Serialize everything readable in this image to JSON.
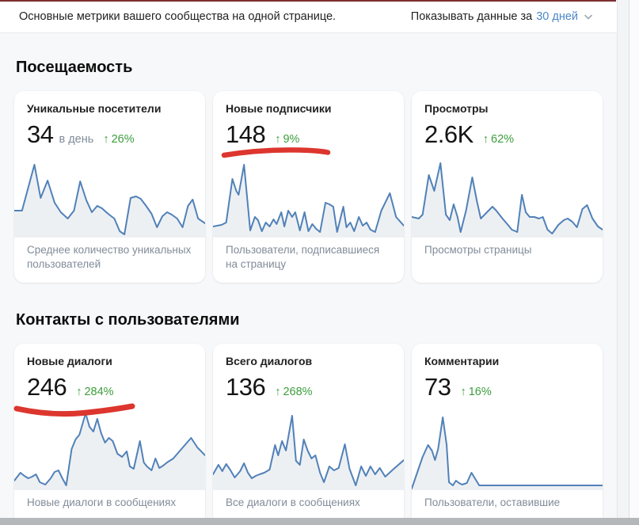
{
  "theme": {
    "chart_line": "#5181b8",
    "chart_fill": "#edf0f3",
    "growth_green": "#3c9e3c",
    "link_blue": "#4a86c8",
    "annotation_red": "#dc362e",
    "top_edge_red": "#7e2f2f",
    "text_primary": "#222222",
    "text_secondary": "#818c99",
    "page_bg": "#f7f8fa",
    "card_bg": "#ffffff",
    "scrollbar_gray": "#b5b8ba"
  },
  "header": {
    "subtitle": "Основные метрики вашего сообщества на одной странице.",
    "period_label": "Показывать данные за",
    "period_value": "30 дней"
  },
  "icons": {
    "growth_arrow": "↑"
  },
  "sections": [
    {
      "title": "Посещаемость",
      "cards": [
        {
          "title": "Уникальные посетители",
          "value": "34",
          "unit": "в день",
          "growth": "26%",
          "caption": "Среднее количество уникальных пользователей"
        },
        {
          "title": "Новые подписчики",
          "value": "148",
          "growth": "9%",
          "caption": "Пользователи, подписавшиеся на страницу",
          "annotation": "red-marker-underline"
        },
        {
          "title": "Просмотры",
          "value": "2.6K",
          "growth": "62%",
          "caption": "Просмотры страницы"
        }
      ]
    },
    {
      "title": "Контакты с пользователями",
      "cards": [
        {
          "title": "Новые диалоги",
          "value": "246",
          "growth": "284%",
          "caption": "Новые диалоги в сообщениях",
          "annotation": "red-marker-underline"
        },
        {
          "title": "Всего диалогов",
          "value": "136",
          "growth": "268%",
          "caption": "Все диалоги в сообщениях"
        },
        {
          "title": "Комментарии",
          "value": "73",
          "growth": "16%",
          "caption": "Пользователи, оставившие"
        }
      ]
    }
  ],
  "chart_data": [
    {
      "type": "line",
      "title": "Уникальные посетители",
      "summary_value": 34,
      "growth_pct": 26,
      "x_axis": "последние 30 дней (подписи осей скрыты)",
      "y_scale": "относительные значения 0–100",
      "points": [
        [
          0,
          32
        ],
        [
          10,
          32
        ],
        [
          26,
          90
        ],
        [
          34,
          48
        ],
        [
          43,
          70
        ],
        [
          52,
          42
        ],
        [
          60,
          30
        ],
        [
          69,
          22
        ],
        [
          77,
          32
        ],
        [
          85,
          69
        ],
        [
          93,
          45
        ],
        [
          100,
          30
        ],
        [
          107,
          38
        ],
        [
          113,
          35
        ],
        [
          121,
          28
        ],
        [
          129,
          22
        ],
        [
          136,
          6
        ],
        [
          142,
          2
        ],
        [
          150,
          48
        ],
        [
          157,
          50
        ],
        [
          163,
          47
        ],
        [
          170,
          38
        ],
        [
          177,
          28
        ],
        [
          184,
          11
        ],
        [
          191,
          25
        ],
        [
          197,
          30
        ],
        [
          203,
          27
        ],
        [
          210,
          22
        ],
        [
          217,
          11
        ],
        [
          224,
          38
        ],
        [
          230,
          46
        ],
        [
          237,
          22
        ],
        [
          246,
          16
        ]
      ]
    },
    {
      "type": "line",
      "title": "Новые подписчики",
      "summary_value": 148,
      "growth_pct": 9,
      "x_axis": "последние 30 дней (подписи осей скрыты)",
      "y_scale": "относительные значения 0–100",
      "points": [
        [
          0,
          12
        ],
        [
          11,
          14
        ],
        [
          17,
          17
        ],
        [
          25,
          72
        ],
        [
          30,
          57
        ],
        [
          33,
          52
        ],
        [
          40,
          90
        ],
        [
          48,
          7
        ],
        [
          54,
          24
        ],
        [
          58,
          20
        ],
        [
          63,
          6
        ],
        [
          68,
          17
        ],
        [
          73,
          12
        ],
        [
          78,
          21
        ],
        [
          82,
          15
        ],
        [
          88,
          30
        ],
        [
          92,
          12
        ],
        [
          97,
          32
        ],
        [
          102,
          24
        ],
        [
          106,
          30
        ],
        [
          112,
          7
        ],
        [
          118,
          30
        ],
        [
          123,
          6
        ],
        [
          128,
          15
        ],
        [
          133,
          9
        ],
        [
          138,
          5
        ],
        [
          145,
          42
        ],
        [
          150,
          40
        ],
        [
          155,
          37
        ],
        [
          160,
          5
        ],
        [
          168,
          37
        ],
        [
          172,
          11
        ],
        [
          177,
          17
        ],
        [
          182,
          6
        ],
        [
          188,
          24
        ],
        [
          193,
          13
        ],
        [
          198,
          17
        ],
        [
          203,
          8
        ],
        [
          209,
          5
        ],
        [
          217,
          32
        ],
        [
          228,
          54
        ],
        [
          236,
          24
        ],
        [
          246,
          13
        ]
      ]
    },
    {
      "type": "line",
      "title": "Просмотры",
      "summary_value": 2600,
      "growth_pct": 62,
      "x_axis": "последние 30 дней (подписи осей скрыты)",
      "y_scale": "относительные значения 0–100",
      "points": [
        [
          0,
          24
        ],
        [
          9,
          22
        ],
        [
          14,
          27
        ],
        [
          22,
          77
        ],
        [
          29,
          57
        ],
        [
          37,
          92
        ],
        [
          44,
          27
        ],
        [
          49,
          20
        ],
        [
          54,
          40
        ],
        [
          59,
          24
        ],
        [
          63,
          5
        ],
        [
          70,
          32
        ],
        [
          78,
          74
        ],
        [
          84,
          44
        ],
        [
          89,
          22
        ],
        [
          94,
          27
        ],
        [
          99,
          32
        ],
        [
          104,
          37
        ],
        [
          109,
          32
        ],
        [
          117,
          22
        ],
        [
          124,
          14
        ],
        [
          129,
          8
        ],
        [
          136,
          5
        ],
        [
          142,
          52
        ],
        [
          147,
          30
        ],
        [
          152,
          24
        ],
        [
          158,
          24
        ],
        [
          164,
          22
        ],
        [
          169,
          24
        ],
        [
          175,
          8
        ],
        [
          181,
          3
        ],
        [
          189,
          14
        ],
        [
          196,
          20
        ],
        [
          201,
          22
        ],
        [
          207,
          18
        ],
        [
          213,
          11
        ],
        [
          220,
          34
        ],
        [
          226,
          39
        ],
        [
          233,
          22
        ],
        [
          240,
          12
        ],
        [
          246,
          8
        ]
      ]
    },
    {
      "type": "line",
      "title": "Новые диалоги",
      "summary_value": 246,
      "growth_pct": 284,
      "x_axis": "последние 30 дней (подписи осей скрыты)",
      "y_scale": "относительные значения 0–100",
      "points": [
        [
          0,
          10
        ],
        [
          8,
          20
        ],
        [
          13,
          16
        ],
        [
          18,
          13
        ],
        [
          23,
          15
        ],
        [
          28,
          18
        ],
        [
          33,
          8
        ],
        [
          40,
          5
        ],
        [
          47,
          13
        ],
        [
          52,
          21
        ],
        [
          57,
          23
        ],
        [
          62,
          13
        ],
        [
          67,
          4
        ],
        [
          74,
          50
        ],
        [
          79,
          62
        ],
        [
          84,
          68
        ],
        [
          92,
          95
        ],
        [
          97,
          78
        ],
        [
          102,
          72
        ],
        [
          107,
          88
        ],
        [
          112,
          70
        ],
        [
          117,
          58
        ],
        [
          122,
          64
        ],
        [
          127,
          60
        ],
        [
          133,
          44
        ],
        [
          139,
          40
        ],
        [
          145,
          47
        ],
        [
          149,
          28
        ],
        [
          154,
          25
        ],
        [
          162,
          60
        ],
        [
          167,
          33
        ],
        [
          171,
          28
        ],
        [
          177,
          23
        ],
        [
          182,
          38
        ],
        [
          187,
          26
        ],
        [
          192,
          29
        ],
        [
          197,
          33
        ],
        [
          205,
          38
        ],
        [
          212,
          46
        ],
        [
          220,
          55
        ],
        [
          228,
          64
        ],
        [
          236,
          52
        ],
        [
          246,
          42
        ]
      ]
    },
    {
      "type": "line",
      "title": "Всего диалогов",
      "summary_value": 136,
      "growth_pct": 268,
      "x_axis": "последние 30 дней (подписи осей скрыты)",
      "y_scale": "относительные значения 0–100",
      "points": [
        [
          0,
          18
        ],
        [
          7,
          30
        ],
        [
          12,
          22
        ],
        [
          17,
          31
        ],
        [
          22,
          24
        ],
        [
          28,
          14
        ],
        [
          35,
          22
        ],
        [
          40,
          32
        ],
        [
          45,
          20
        ],
        [
          50,
          13
        ],
        [
          55,
          16
        ],
        [
          60,
          18
        ],
        [
          66,
          20
        ],
        [
          73,
          24
        ],
        [
          80,
          55
        ],
        [
          84,
          42
        ],
        [
          89,
          60
        ],
        [
          94,
          48
        ],
        [
          102,
          92
        ],
        [
          107,
          35
        ],
        [
          112,
          30
        ],
        [
          117,
          62
        ],
        [
          122,
          48
        ],
        [
          127,
          38
        ],
        [
          132,
          42
        ],
        [
          138,
          20
        ],
        [
          143,
          8
        ],
        [
          150,
          28
        ],
        [
          156,
          23
        ],
        [
          162,
          26
        ],
        [
          170,
          56
        ],
        [
          176,
          25
        ],
        [
          184,
          4
        ],
        [
          191,
          28
        ],
        [
          197,
          16
        ],
        [
          203,
          28
        ],
        [
          209,
          18
        ],
        [
          215,
          26
        ],
        [
          222,
          15
        ],
        [
          232,
          24
        ],
        [
          246,
          36
        ]
      ]
    },
    {
      "type": "line",
      "title": "Комментарии",
      "summary_value": 73,
      "growth_pct": 16,
      "x_axis": "последние 30 дней (подписи осей скрыты)",
      "y_scale": "относительные значения 0–100",
      "points": [
        [
          0,
          0
        ],
        [
          7,
          20
        ],
        [
          14,
          40
        ],
        [
          21,
          55
        ],
        [
          26,
          48
        ],
        [
          30,
          36
        ],
        [
          34,
          50
        ],
        [
          40,
          90
        ],
        [
          45,
          55
        ],
        [
          48,
          8
        ],
        [
          53,
          4
        ],
        [
          57,
          10
        ],
        [
          61,
          7
        ],
        [
          65,
          5
        ],
        [
          71,
          7
        ],
        [
          77,
          20
        ],
        [
          82,
          12
        ],
        [
          87,
          4
        ],
        [
          100,
          4
        ],
        [
          120,
          4
        ],
        [
          140,
          4
        ],
        [
          160,
          4
        ],
        [
          180,
          4
        ],
        [
          200,
          4
        ],
        [
          220,
          4
        ],
        [
          246,
          4
        ]
      ]
    }
  ]
}
